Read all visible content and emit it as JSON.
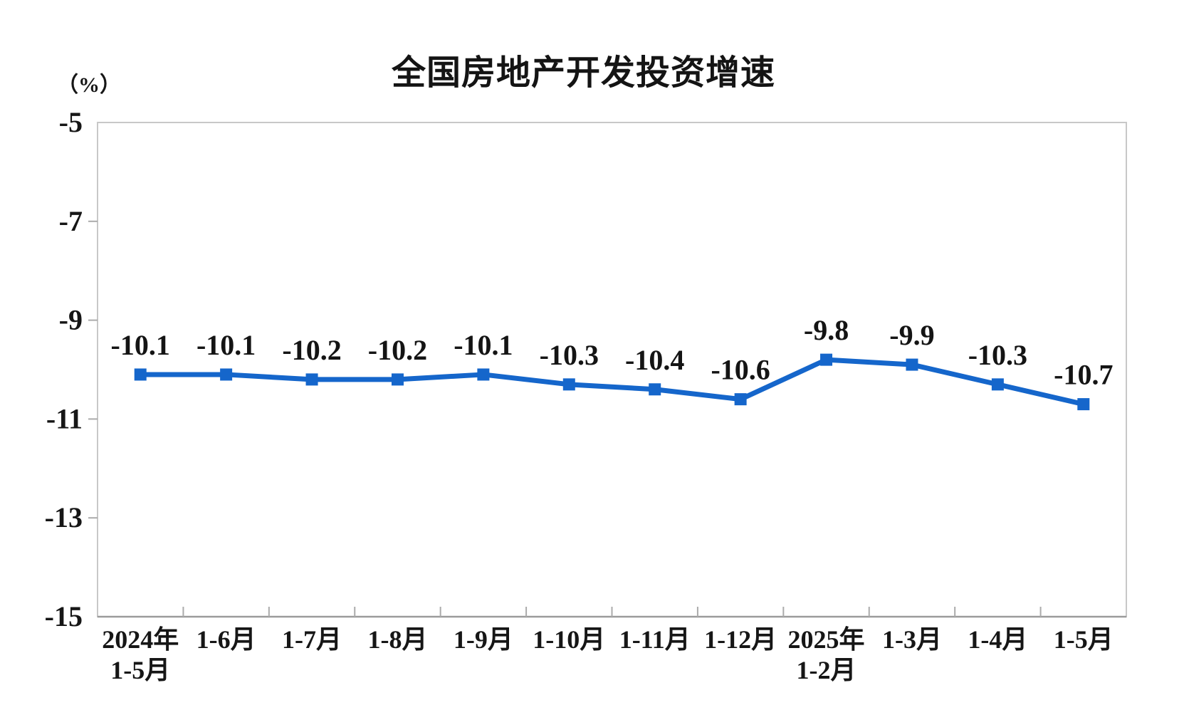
{
  "page": {
    "background_color": "#ffffff"
  },
  "chart_data": {
    "type": "line",
    "title": "全国房地产开发投资增速",
    "unit_label": "（%）",
    "categories": [
      "2024年\n1-5月",
      "1-6月",
      "1-7月",
      "1-8月",
      "1-9月",
      "1-10月",
      "1-11月",
      "1-12月",
      "2025年\n1-2月",
      "1-3月",
      "1-4月",
      "1-5月"
    ],
    "values": [
      -10.1,
      -10.1,
      -10.2,
      -10.2,
      -10.1,
      -10.3,
      -10.4,
      -10.6,
      -9.8,
      -9.9,
      -10.3,
      -10.7
    ],
    "data_labels": [
      "-10.1",
      "-10.1",
      "-10.2",
      "-10.2",
      "-10.1",
      "-10.3",
      "-10.4",
      "-10.6",
      "-9.8",
      "-9.9",
      "-10.3",
      "-10.7"
    ],
    "ylim": [
      -15,
      -5
    ],
    "yticks": [
      -5,
      -7,
      -9,
      -11,
      -13,
      -15
    ],
    "ytick_labels": [
      "-5",
      "-7",
      "-9",
      "-11",
      "-13",
      "-15"
    ],
    "grid": false,
    "legend": "none",
    "marker": "square",
    "line_color": "#1566CB",
    "marker_color": "#1566CB",
    "frame_color": "#C8C8C8",
    "bottom_axis_color": "#9B9B9B",
    "tick_color": "#ABABAB",
    "text_color": "#161616"
  }
}
